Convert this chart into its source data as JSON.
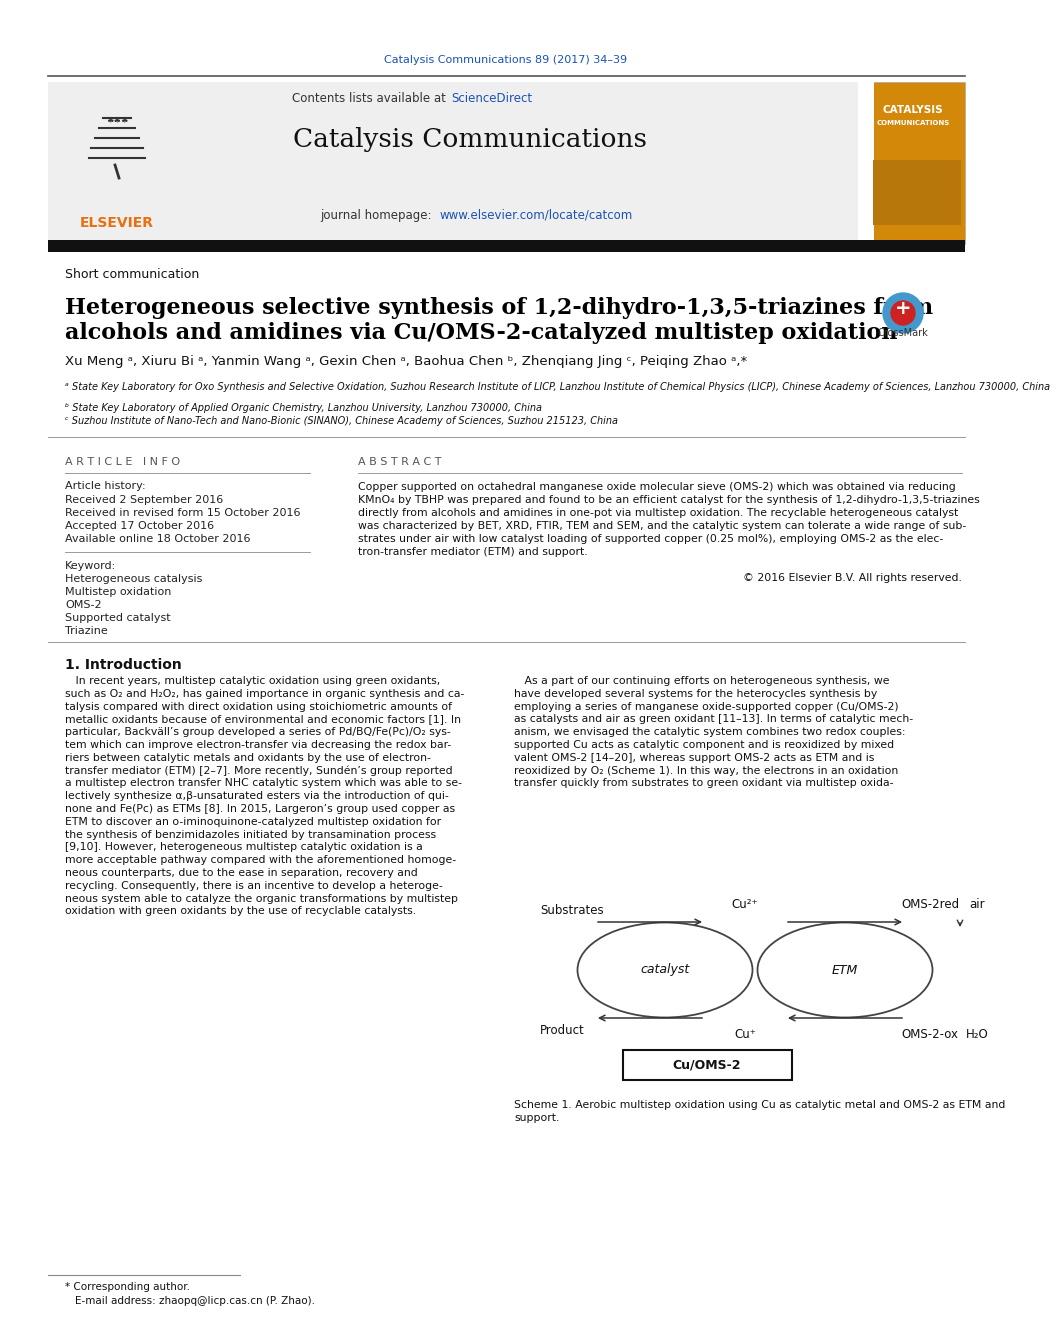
{
  "bg_color": "#ffffff",
  "top_citation": "Catalysis Communications 89 (2017) 34–39",
  "journal_name": "Catalysis Communications",
  "contents_line": "Contents lists available at ScienceDirect",
  "homepage_line": "journal homepage: www.elsevier.com/locate/catcom",
  "section_label": "Short communication",
  "article_title_line1": "Heterogeneous selective synthesis of 1,2-dihydro-1,3,5-triazines from",
  "article_title_line2": "alcohols and amidines via Cu/OMS-2-catalyzed multistep oxidation",
  "authors": "Xu Meng ᵃ, Xiuru Bi ᵃ, Yanmin Wang ᵃ, Gexin Chen ᵃ, Baohua Chen ᵇ, Zhenqiang Jing ᶜ, Peiqing Zhao ᵃ,*",
  "affil_a": "ᵃ State Key Laboratory for Oxo Synthesis and Selective Oxidation, Suzhou Research Institute of LICP, Lanzhou Institute of Chemical Physics (LICP), Chinese Academy of Sciences, Lanzhou 730000, China",
  "affil_b": "ᵇ State Key Laboratory of Applied Organic Chemistry, Lanzhou University, Lanzhou 730000, China",
  "affil_c": "ᶜ Suzhou Institute of Nano-Tech and Nano-Bionic (SINANO), Chinese Academy of Sciences, Suzhou 215123, China",
  "article_info_title": "A R T I C L E   I N F O",
  "article_history_title": "Article history:",
  "received_1": "Received 2 September 2016",
  "received_2": "Received in revised form 15 October 2016",
  "accepted": "Accepted 17 October 2016",
  "available": "Available online 18 October 2016",
  "keyword_title": "Keyword:",
  "keywords": [
    "Heterogeneous catalysis",
    "Multistep oxidation",
    "OMS-2",
    "Supported catalyst",
    "Triazine"
  ],
  "abstract_title": "A B S T R A C T",
  "abstract_lines": [
    "Copper supported on octahedral manganese oxide molecular sieve (OMS-2) which was obtained via reducing",
    "KMnO₄ by TBHP was prepared and found to be an efficient catalyst for the synthesis of 1,2-dihydro-1,3,5-triazines",
    "directly from alcohols and amidines in one-pot via multistep oxidation. The recyclable heterogeneous catalyst",
    "was characterized by BET, XRD, FTIR, TEM and SEM, and the catalytic system can tolerate a wide range of sub-",
    "strates under air with low catalyst loading of supported copper (0.25 mol%), employing OMS-2 as the elec-",
    "tron-transfer mediator (ETM) and support."
  ],
  "copyright": "© 2016 Elsevier B.V. All rights reserved.",
  "intro_title": "1. Introduction",
  "intro_left_lines": [
    "   In recent years, multistep catalytic oxidation using green oxidants,",
    "such as O₂ and H₂O₂, has gained importance in organic synthesis and ca-",
    "talysis compared with direct oxidation using stoichiometric amounts of",
    "metallic oxidants because of environmental and economic factors [1]. In",
    "particular, Backväll’s group developed a series of Pd/BQ/Fe(Pc)/O₂ sys-",
    "tem which can improve electron-transfer via decreasing the redox bar-",
    "riers between catalytic metals and oxidants by the use of electron-",
    "transfer mediator (ETM) [2–7]. More recently, Sundén’s group reported",
    "a multistep electron transfer NHC catalytic system which was able to se-",
    "lectively synthesize α,β-unsaturated esters via the introduction of qui-",
    "none and Fe(Pc) as ETMs [8]. In 2015, Largeron’s group used copper as",
    "ETM to discover an o-iminoquinone-catalyzed multistep oxidation for",
    "the synthesis of benzimidazoles initiated by transamination process",
    "[9,10]. However, heterogeneous multistep catalytic oxidation is a",
    "more acceptable pathway compared with the aforementioned homoge-",
    "neous counterparts, due to the ease in separation, recovery and",
    "recycling. Consequently, there is an incentive to develop a heteroge-",
    "neous system able to catalyze the organic transformations by multistep",
    "oxidation with green oxidants by the use of recyclable catalysts."
  ],
  "intro_right_lines": [
    "   As a part of our continuing efforts on heterogeneous synthesis, we",
    "have developed several systems for the heterocycles synthesis by",
    "employing a series of manganese oxide-supported copper (Cu/OMS-2)",
    "as catalysts and air as green oxidant [11–13]. In terms of catalytic mech-",
    "anism, we envisaged the catalytic system combines two redox couples:",
    "supported Cu acts as catalytic component and is reoxidized by mixed",
    "valent OMS-2 [14–20], whereas support OMS-2 acts as ETM and is",
    "reoxidized by O₂ (Scheme 1). In this way, the electrons in an oxidation",
    "transfer quickly from substrates to green oxidant via multistep oxida-"
  ],
  "scheme_label_substrates": "Substrates",
  "scheme_label_product": "Product",
  "scheme_label_cu2": "Cu²⁺",
  "scheme_label_cu1": "Cu⁺",
  "scheme_label_oms2red": "OMS-2red",
  "scheme_label_oms2ox": "OMS-2-ox",
  "scheme_label_air": "air",
  "scheme_label_h2o": "H₂O",
  "scheme_label_catalyst": "catalyst",
  "scheme_label_etm": "ETM",
  "scheme_label_cuoms2": "Cu/OMS-2",
  "scheme_caption": "Scheme 1. Aerobic multistep oxidation using Cu as catalytic metal and OMS-2 as ETM and\nsupport.",
  "footer_line1": "* Corresponding author.",
  "footer_line2": "  E-mail address: zhaopq@licp.cas.cn (P. Zhao)."
}
